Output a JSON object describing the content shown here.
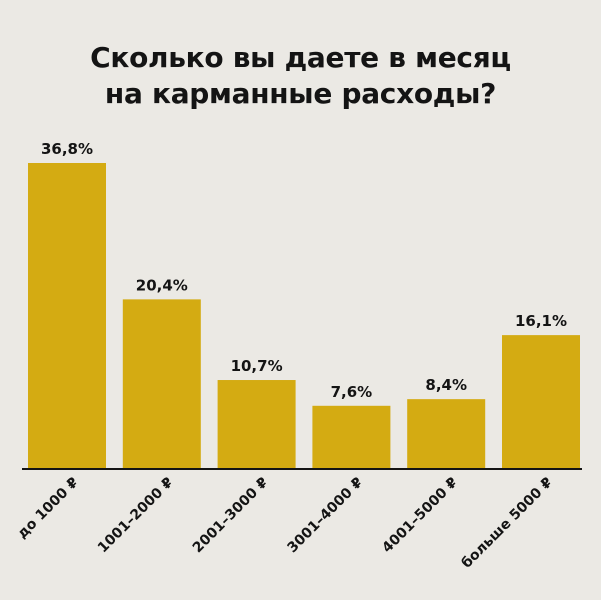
{
  "title_lines": [
    "Сколько вы даете в месяц",
    "на карманные расходы?"
  ],
  "colors": {
    "bar": "#d4ab12",
    "axis": "#141414",
    "background": "#ebe9e4"
  },
  "chart_data": {
    "type": "bar",
    "title": "Сколько вы даете в месяц на карманные расходы?",
    "categories": [
      "до 1000 ₽",
      "1001–2000 ₽",
      "2001–3000 ₽",
      "3001–4000 ₽",
      "4001–5000 ₽",
      "больше 5000 ₽"
    ],
    "values": [
      36.8,
      20.4,
      10.7,
      7.6,
      8.4,
      16.1
    ],
    "value_labels": [
      "36,8%",
      "20,4%",
      "10,7%",
      "7,6%",
      "8,4%",
      "16,1%"
    ],
    "unit": "%",
    "grid": false,
    "legend": "none"
  }
}
